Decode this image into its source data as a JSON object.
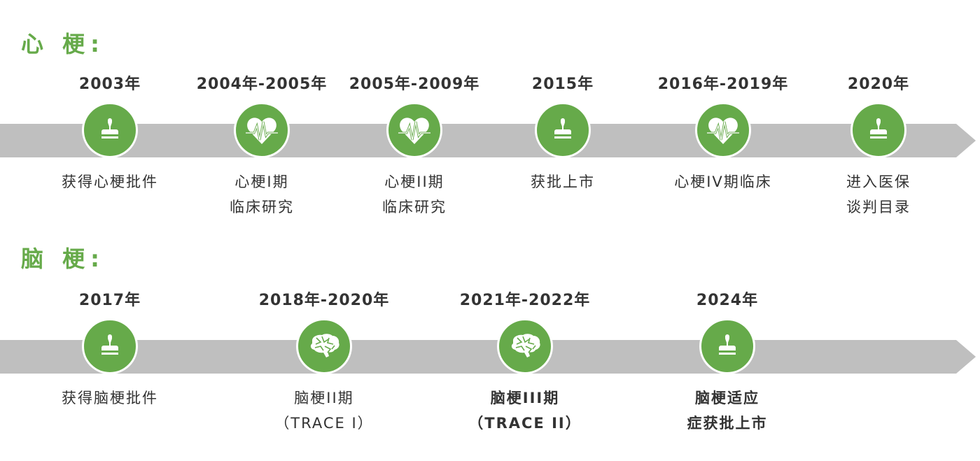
{
  "colors": {
    "accent": "#66aa4a",
    "bar": "#bfbfbf"
  },
  "sections": [
    {
      "title": "心 梗:",
      "milestones": [
        {
          "year": "2003年",
          "icon": "stamp-icon",
          "lines": [
            "获得心梗批件"
          ]
        },
        {
          "year": "2004年-2005年",
          "icon": "heart-pulse-icon",
          "lines": [
            "心梗I期",
            "临床研究"
          ]
        },
        {
          "year": "2005年-2009年",
          "icon": "heart-pulse-icon",
          "lines": [
            "心梗II期",
            "临床研究"
          ]
        },
        {
          "year": "2015年",
          "icon": "stamp-icon",
          "lines": [
            "获批上市"
          ]
        },
        {
          "year": "2016年-2019年",
          "icon": "heart-pulse-icon",
          "lines": [
            "心梗IV期临床"
          ]
        },
        {
          "year": "2020年",
          "icon": "stamp-icon",
          "lines": [
            "进入医保",
            "谈判目录"
          ]
        }
      ]
    },
    {
      "title": "脑 梗:",
      "milestones": [
        {
          "year": "2017年",
          "icon": "stamp-icon",
          "lines": [
            "获得脑梗批件"
          ]
        },
        {
          "year": "2018年-2020年",
          "icon": "brain-icon",
          "lines": [
            "脑梗II期",
            "（TRACE I）"
          ]
        },
        {
          "year": "2021年-2022年",
          "icon": "brain-icon",
          "lines": [
            "脑梗III期",
            "（TRACE II）"
          ]
        },
        {
          "year": "2024年",
          "icon": "stamp-icon",
          "lines": [
            "脑梗适应",
            "症获批上市"
          ]
        }
      ]
    }
  ]
}
